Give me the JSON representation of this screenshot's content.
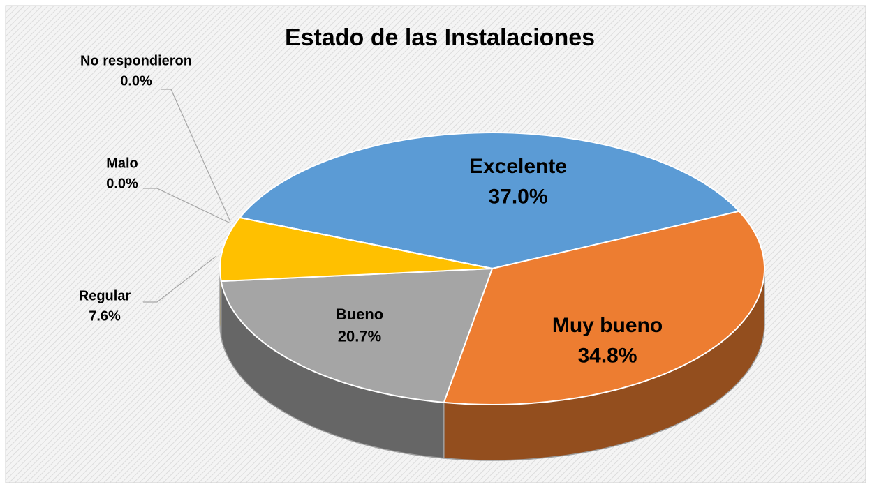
{
  "chart_data": {
    "type": "pie",
    "title": "Estado de las Instalaciones",
    "categories": [
      "Excelente",
      "Muy bueno",
      "Bueno",
      "Regular",
      "Malo",
      "No respondieron"
    ],
    "values": [
      37.0,
      34.8,
      20.7,
      7.6,
      0.0,
      0.0
    ],
    "value_labels": [
      "37.0%",
      "34.8%",
      "20.7%",
      "7.6%",
      "0.0%",
      "0.0%"
    ],
    "colors": [
      "#5b9bd5",
      "#ed7d31",
      "#a5a5a5",
      "#ffc000",
      "#4472c4",
      "#70ad47"
    ]
  }
}
